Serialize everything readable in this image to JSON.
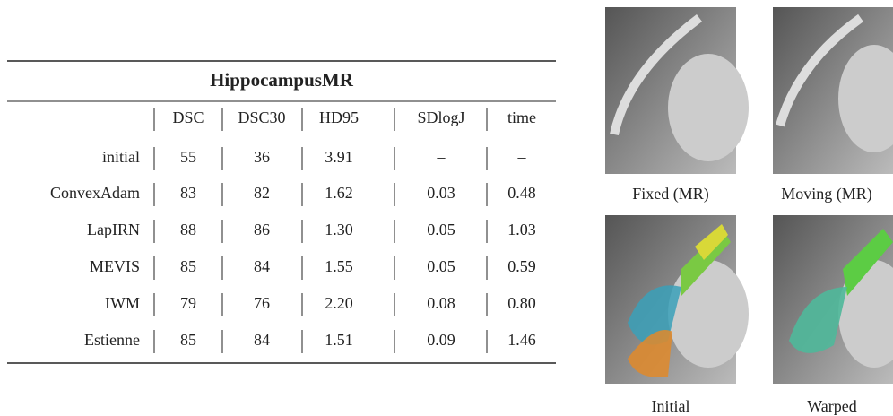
{
  "table": {
    "title": "HippocampusMR",
    "header": [
      "DSC",
      "DSC30",
      "HD95",
      "SDlogJ",
      "time"
    ],
    "rows": [
      {
        "label": "initial",
        "cells": [
          "55",
          "36",
          "3.91",
          "–",
          "–"
        ]
      },
      {
        "label": "ConvexAdam",
        "cells": [
          "83",
          "82",
          "1.62",
          "0.03",
          "0.48"
        ]
      },
      {
        "label": "LapIRN",
        "cells": [
          "88",
          "86",
          "1.30",
          "0.05",
          "1.03"
        ]
      },
      {
        "label": "MEVIS",
        "cells": [
          "85",
          "84",
          "1.55",
          "0.05",
          "0.59"
        ]
      },
      {
        "label": "IWM",
        "cells": [
          "79",
          "76",
          "2.20",
          "0.08",
          "0.80"
        ]
      },
      {
        "label": "Estienne",
        "cells": [
          "85",
          "84",
          "1.51",
          "0.09",
          "1.46"
        ]
      }
    ]
  },
  "images": [
    {
      "label": "Fixed (MR)"
    },
    {
      "label": "Moving (MR)"
    },
    {
      "label": "Initial"
    },
    {
      "label": "Warped"
    }
  ]
}
